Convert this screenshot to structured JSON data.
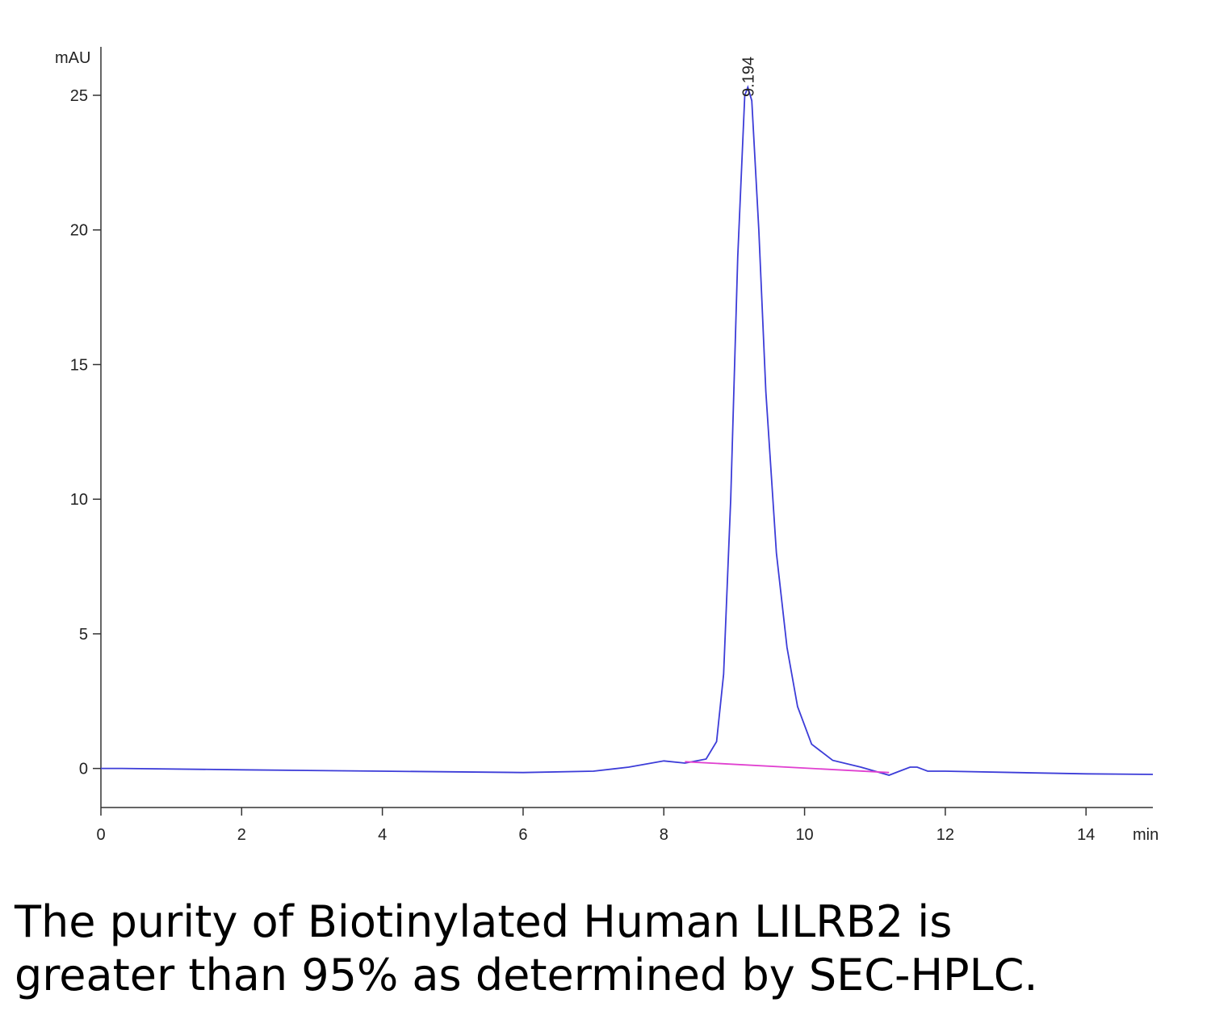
{
  "chart_data": {
    "type": "line",
    "y_label": "mAU",
    "x_label": "min",
    "xlim": [
      0,
      14.95
    ],
    "ylim": [
      -1.45,
      26.8
    ],
    "xticks": [
      0,
      2,
      4,
      6,
      8,
      10,
      12,
      14
    ],
    "yticks": [
      0,
      5,
      10,
      15,
      20,
      25
    ],
    "series": [
      {
        "name": "Signal",
        "color": "#3c3cd8",
        "x": [
          0,
          0.3,
          2,
          4,
          6,
          7,
          7.5,
          8.0,
          8.3,
          8.6,
          8.75,
          8.85,
          8.95,
          9.05,
          9.15,
          9.194,
          9.25,
          9.35,
          9.45,
          9.6,
          9.75,
          9.9,
          10.1,
          10.4,
          10.8,
          11.2,
          11.35,
          11.5,
          11.6,
          11.75,
          12,
          13,
          14,
          14.95
        ],
        "values": [
          0.0,
          0.0,
          -0.05,
          -0.1,
          -0.15,
          -0.1,
          0.05,
          0.28,
          0.2,
          0.35,
          1.0,
          3.5,
          10,
          19,
          25,
          25.3,
          24.8,
          20,
          14,
          8,
          4.5,
          2.3,
          0.9,
          0.3,
          0.05,
          -0.25,
          -0.1,
          0.05,
          0.05,
          -0.1,
          -0.1,
          -0.15,
          -0.2,
          -0.22
        ]
      },
      {
        "name": "Baseline",
        "color": "#e040d0",
        "x": [
          8.3,
          11.2
        ],
        "values": [
          0.25,
          -0.15
        ]
      }
    ],
    "annotations": [
      {
        "text": "9.194",
        "x": 9.194,
        "y": 25.3
      }
    ],
    "caption": [
      "The purity of Biotinylated Human LILRB2 is",
      "greater than 95% as determined by SEC-HPLC."
    ]
  }
}
